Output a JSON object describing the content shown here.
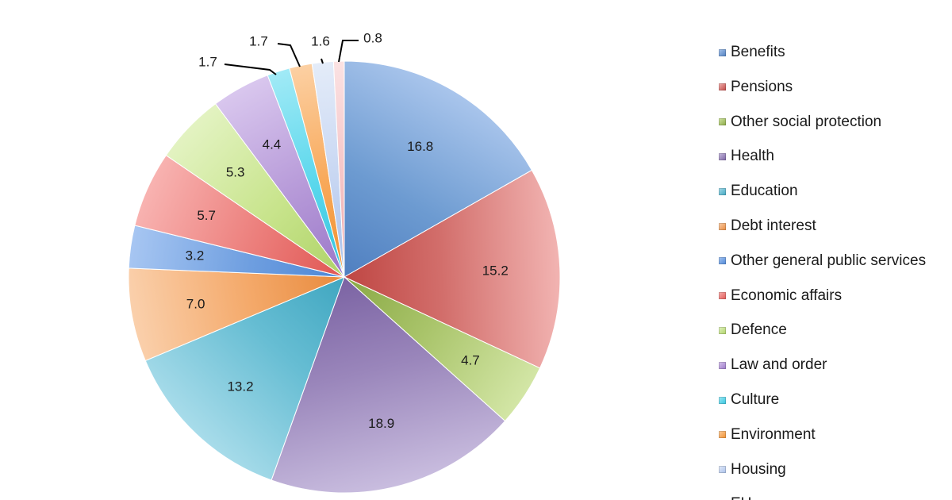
{
  "chart_data": {
    "type": "pie",
    "title": "",
    "start_angle_deg": 0,
    "direction": "clockwise",
    "legend_position": "right",
    "slices": [
      {
        "label": "Benefits",
        "value": 16.8,
        "display": "16.8",
        "color": "#6d9bd1",
        "color_light": "#a9c5ec",
        "color_dark": "#4f7fc0"
      },
      {
        "label": "Pensions",
        "value": 15.2,
        "display": "15.2",
        "color": "#d26e6b",
        "color_light": "#f2b4b2",
        "color_dark": "#bf4643"
      },
      {
        "label": "Other social protection",
        "value": 4.7,
        "display": "4.7",
        "color": "#a9c46a",
        "color_light": "#d3e6a6",
        "color_dark": "#89a844"
      },
      {
        "label": "Health",
        "value": 18.9,
        "display": "18.9",
        "color": "#9a86bb",
        "color_light": "#c9bddf",
        "color_dark": "#7b63a3"
      },
      {
        "label": "Education",
        "value": 13.2,
        "display": "13.2",
        "color": "#66bdd3",
        "color_light": "#a8dcea",
        "color_dark": "#3fa6c0"
      },
      {
        "label": "Debt interest",
        "value": 7.0,
        "display": "7.0",
        "color": "#f4a96a",
        "color_light": "#fad0ac",
        "color_dark": "#e88a3d"
      },
      {
        "label": "Other general public services",
        "value": 3.2,
        "display": "3.2",
        "color": "#6f9fe0",
        "color_light": "#a7c6f2",
        "color_dark": "#4d86d6"
      },
      {
        "label": "Economic affairs",
        "value": 5.7,
        "display": "5.7",
        "color": "#ec7f7c",
        "color_light": "#f8b3b1",
        "color_dark": "#e05653"
      },
      {
        "label": "Defence",
        "value": 5.3,
        "display": "5.3",
        "color": "#c8e48c",
        "color_light": "#e3f3c2",
        "color_dark": "#aed267"
      },
      {
        "label": "Law and order",
        "value": 4.4,
        "display": "4.4",
        "color": "#b699d8",
        "color_light": "#d9c7ee",
        "color_dark": "#9a77c8"
      },
      {
        "label": "Culture",
        "value": 1.7,
        "display": "1.7",
        "color": "#5ad7ec",
        "color_light": "#a1eaf6",
        "color_dark": "#34c4dd"
      },
      {
        "label": "Environment",
        "value": 1.7,
        "display": "1.7",
        "color": "#f8a95a",
        "color_light": "#fcd0a3",
        "color_dark": "#f08f2e"
      },
      {
        "label": "Housing",
        "value": 1.6,
        "display": "1.6",
        "color": "#c7d6f2",
        "color_light": "#e4ecf9",
        "color_dark": "#a9c0ea"
      },
      {
        "label": "EU",
        "value": 0.8,
        "display": "0.8",
        "color": "#f5c4c6",
        "color_light": "#fbe2e3",
        "color_dark": "#eea6a9"
      }
    ]
  }
}
